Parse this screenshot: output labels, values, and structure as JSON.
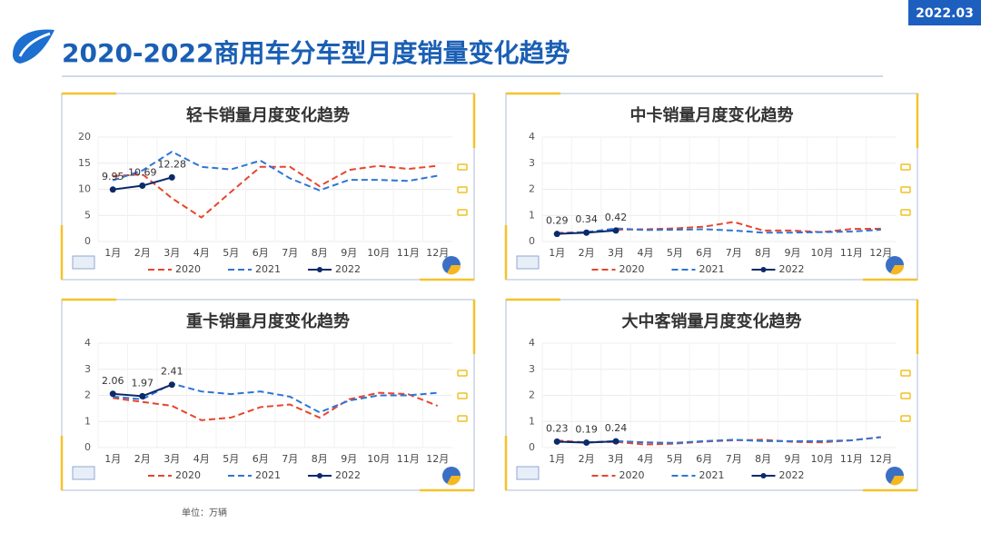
{
  "header": {
    "title": "2020-2022商用车分车型月度销量变化趋势",
    "date": "2022.03"
  },
  "footer": {
    "unit": "单位：万辆"
  },
  "chart_data": [
    {
      "type": "line",
      "title": "轻卡销量月度变化趋势",
      "categories": [
        "1月",
        "2月",
        "3月",
        "4月",
        "5月",
        "6月",
        "7月",
        "8月",
        "9月",
        "10月",
        "11月",
        "12月"
      ],
      "ylim": [
        0,
        20
      ],
      "yticks": [
        0,
        5,
        10,
        15,
        20
      ],
      "grid": true,
      "series": [
        {
          "name": "2020",
          "color": "#e8452c",
          "dash": true,
          "values": [
            12.5,
            12.9,
            8.3,
            4.6,
            9.5,
            14.3,
            14.3,
            10.6,
            13.7,
            14.5,
            13.9,
            14.5
          ]
        },
        {
          "name": "2021",
          "color": "#2e75d6",
          "dash": true,
          "values": [
            11.7,
            13.6,
            17.2,
            14.3,
            13.8,
            15.5,
            12.1,
            9.8,
            11.8,
            11.8,
            11.6,
            12.6
          ]
        },
        {
          "name": "2022",
          "color": "#0b2a6b",
          "dash": false,
          "markers": true,
          "labels": true,
          "values": [
            9.95,
            10.69,
            12.28,
            null,
            null,
            null,
            null,
            null,
            null,
            null,
            null,
            null
          ]
        }
      ]
    },
    {
      "type": "line",
      "title": "中卡销量月度变化趋势",
      "categories": [
        "1月",
        "2月",
        "3月",
        "4月",
        "5月",
        "6月",
        "7月",
        "8月",
        "9月",
        "10月",
        "11月",
        "12月"
      ],
      "ylim": [
        0,
        4
      ],
      "yticks": [
        0,
        1,
        2,
        3,
        4
      ],
      "grid": true,
      "series": [
        {
          "name": "2020",
          "color": "#e8452c",
          "dash": true,
          "values": [
            0.33,
            0.36,
            0.45,
            0.47,
            0.5,
            0.57,
            0.75,
            0.42,
            0.42,
            0.36,
            0.48,
            0.49
          ]
        },
        {
          "name": "2021",
          "color": "#2e75d6",
          "dash": true,
          "values": [
            0.3,
            0.36,
            0.5,
            0.44,
            0.45,
            0.47,
            0.42,
            0.34,
            0.34,
            0.36,
            0.38,
            0.45
          ]
        },
        {
          "name": "2022",
          "color": "#0b2a6b",
          "dash": false,
          "markers": true,
          "labels": true,
          "values": [
            0.29,
            0.34,
            0.42,
            null,
            null,
            null,
            null,
            null,
            null,
            null,
            null,
            null
          ]
        }
      ]
    },
    {
      "type": "line",
      "title": "重卡销量月度变化趋势",
      "categories": [
        "1月",
        "2月",
        "3月",
        "4月",
        "5月",
        "6月",
        "7月",
        "8月",
        "9月",
        "10月",
        "11月",
        "12月"
      ],
      "ylim": [
        0,
        4
      ],
      "yticks": [
        0,
        1,
        2,
        3,
        4
      ],
      "grid": true,
      "series": [
        {
          "name": "2020",
          "color": "#e8452c",
          "dash": true,
          "values": [
            1.9,
            1.75,
            1.6,
            1.05,
            1.15,
            1.55,
            1.65,
            1.15,
            1.85,
            2.1,
            2.05,
            1.6
          ]
        },
        {
          "name": "2021",
          "color": "#2e75d6",
          "dash": true,
          "values": [
            1.95,
            1.85,
            2.45,
            2.15,
            2.05,
            2.15,
            1.95,
            1.35,
            1.8,
            2.0,
            2.0,
            2.1
          ]
        },
        {
          "name": "2022",
          "color": "#0b2a6b",
          "dash": false,
          "markers": true,
          "labels": true,
          "values": [
            2.06,
            1.97,
            2.41,
            null,
            null,
            null,
            null,
            null,
            null,
            null,
            null,
            null
          ]
        }
      ]
    },
    {
      "type": "line",
      "title": "大中客销量月度变化趋势",
      "categories": [
        "1月",
        "2月",
        "3月",
        "4月",
        "5月",
        "6月",
        "7月",
        "8月",
        "9月",
        "10月",
        "11月",
        "12月"
      ],
      "ylim": [
        0,
        4
      ],
      "yticks": [
        0,
        1,
        2,
        3,
        4
      ],
      "grid": true,
      "series": [
        {
          "name": "2020",
          "color": "#e8452c",
          "dash": true,
          "values": [
            0.27,
            0.2,
            0.22,
            0.12,
            0.15,
            0.23,
            0.28,
            0.3,
            0.22,
            0.2,
            0.28,
            0.4
          ]
        },
        {
          "name": "2021",
          "color": "#2e75d6",
          "dash": true,
          "values": [
            0.22,
            0.2,
            0.25,
            0.2,
            0.18,
            0.25,
            0.3,
            0.25,
            0.25,
            0.25,
            0.28,
            0.4
          ]
        },
        {
          "name": "2022",
          "color": "#0b2a6b",
          "dash": false,
          "markers": true,
          "labels": true,
          "values": [
            0.23,
            0.19,
            0.24,
            null,
            null,
            null,
            null,
            null,
            null,
            null,
            null,
            null
          ]
        }
      ]
    }
  ]
}
